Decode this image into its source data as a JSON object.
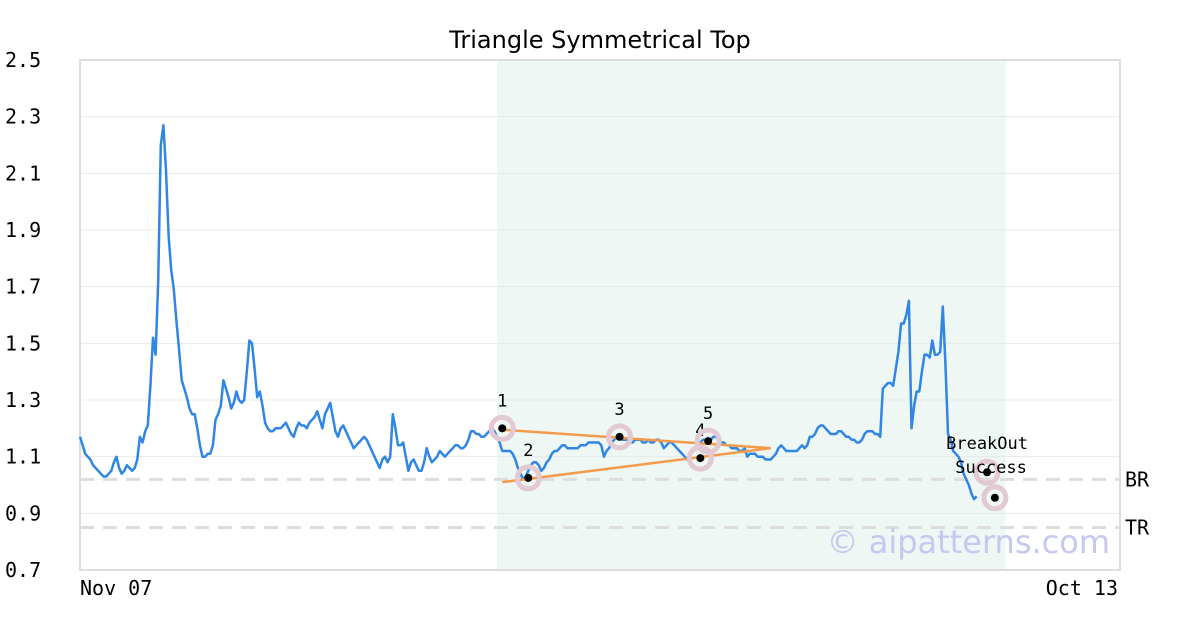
{
  "chart_data": {
    "type": "line",
    "title": "Triangle Symmetrical Top",
    "xlabel": "",
    "ylabel": "",
    "ylim": [
      0.7,
      2.5
    ],
    "y_ticks": [
      "0.7",
      "0.9",
      "1.1",
      "1.3",
      "1.5",
      "1.7",
      "1.9",
      "2.1",
      "2.3",
      "2.5"
    ],
    "x_labels": {
      "start": "Nov 07",
      "end": "Oct 13"
    },
    "n_points": 400,
    "grid": "horizontal",
    "highlight": {
      "from": 160,
      "to": 355,
      "color": "#eef7f3"
    },
    "colors": {
      "price": "#2f86e4",
      "trend": "#f39b4b",
      "marker": "#e2c9d3",
      "ref": "#dddddd",
      "frame": "#dddddd"
    },
    "series": [
      {
        "values": [
          1.17,
          1.14,
          1.11,
          1.1,
          1.09,
          1.07,
          1.06,
          1.05,
          1.04,
          1.03,
          1.03,
          1.04,
          1.05,
          1.08,
          1.1,
          1.06,
          1.04,
          1.05,
          1.07,
          1.06,
          1.05,
          1.06,
          1.09,
          1.17,
          1.15,
          1.19,
          1.21,
          1.35,
          1.52,
          1.46,
          1.72,
          2.2,
          2.27,
          2.11,
          1.88,
          1.76,
          1.69,
          1.58,
          1.48,
          1.37,
          1.34,
          1.31,
          1.27,
          1.25,
          1.25,
          1.2,
          1.14,
          1.1,
          1.1,
          1.11,
          1.11,
          1.14,
          1.23,
          1.25,
          1.28,
          1.37,
          1.34,
          1.31,
          1.27,
          1.29,
          1.33,
          1.3,
          1.29,
          1.3,
          1.4,
          1.51,
          1.5,
          1.41,
          1.31,
          1.33,
          1.28,
          1.22,
          1.2,
          1.19,
          1.19,
          1.2,
          1.2,
          1.2,
          1.21,
          1.22,
          1.2,
          1.18,
          1.17,
          1.2,
          1.22,
          1.21,
          1.21,
          1.2,
          1.22,
          1.23,
          1.24,
          1.26,
          1.23,
          1.2,
          1.25,
          1.27,
          1.29,
          1.24,
          1.19,
          1.17,
          1.2,
          1.21,
          1.19,
          1.17,
          1.15,
          1.13,
          1.14,
          1.15,
          1.16,
          1.17,
          1.16,
          1.14,
          1.12,
          1.1,
          1.08,
          1.06,
          1.09,
          1.1,
          1.08,
          1.1,
          1.25,
          1.2,
          1.14,
          1.14,
          1.15,
          1.1,
          1.05,
          1.08,
          1.09,
          1.07,
          1.05,
          1.05,
          1.08,
          1.13,
          1.1,
          1.08,
          1.09,
          1.1,
          1.12,
          1.11,
          1.1,
          1.11,
          1.12,
          1.13,
          1.14,
          1.14,
          1.13,
          1.13,
          1.14,
          1.16,
          1.19,
          1.19,
          1.18,
          1.18,
          1.17,
          1.17,
          1.18,
          1.19,
          1.2,
          1.19,
          1.17,
          1.15,
          1.12,
          1.12,
          1.12,
          1.12,
          1.11,
          1.09,
          1.06,
          1.04,
          1.02,
          1.03,
          1.05,
          1.07,
          1.08,
          1.08,
          1.07,
          1.05,
          1.06,
          1.08,
          1.09,
          1.11,
          1.12,
          1.12,
          1.13,
          1.14,
          1.14,
          1.13,
          1.13,
          1.13,
          1.13,
          1.13,
          1.14,
          1.14,
          1.14,
          1.15,
          1.15,
          1.15,
          1.15,
          1.15,
          1.14,
          1.1,
          1.12,
          1.13,
          1.15,
          1.16,
          1.17,
          1.17,
          1.16,
          1.16,
          1.16,
          1.15,
          1.15,
          1.16,
          1.16,
          1.16,
          1.15,
          1.15,
          1.16,
          1.15,
          1.15,
          1.16,
          1.16,
          1.15,
          1.13,
          1.14,
          1.15,
          1.15,
          1.14,
          1.13,
          1.12,
          1.11,
          1.1,
          1.09,
          1.1,
          1.12,
          1.13,
          1.14,
          1.15,
          1.16,
          1.16,
          1.16,
          1.16,
          1.17,
          1.17,
          1.16,
          1.15,
          1.15,
          1.14,
          1.14,
          1.13,
          1.13,
          1.13,
          1.12,
          1.12,
          1.13,
          1.1,
          1.11,
          1.11,
          1.11,
          1.1,
          1.1,
          1.1,
          1.09,
          1.09,
          1.09,
          1.1,
          1.11,
          1.13,
          1.14,
          1.13,
          1.12,
          1.12,
          1.12,
          1.12,
          1.12,
          1.13,
          1.14,
          1.13,
          1.14,
          1.17,
          1.17,
          1.18,
          1.2,
          1.21,
          1.21,
          1.2,
          1.19,
          1.18,
          1.18,
          1.18,
          1.19,
          1.19,
          1.18,
          1.17,
          1.17,
          1.16,
          1.16,
          1.15,
          1.15,
          1.16,
          1.18,
          1.19,
          1.19,
          1.19,
          1.18,
          1.18,
          1.17,
          1.34,
          1.35,
          1.36,
          1.36,
          1.35,
          1.41,
          1.47,
          1.57,
          1.57,
          1.6,
          1.65,
          1.2,
          1.28,
          1.33,
          1.33,
          1.4,
          1.46,
          1.46,
          1.45,
          1.51,
          1.46,
          1.46,
          1.47,
          1.63,
          1.43,
          1.18,
          1.16,
          1.12,
          1.11,
          1.1,
          1.08,
          1.04,
          1.02,
          1.0,
          0.97,
          0.95,
          0.96
        ]
      }
    ],
    "ref_lines": [
      {
        "label": "BR",
        "value": 1.02
      },
      {
        "label": "TR",
        "value": 0.85
      }
    ],
    "trend_lines": [
      {
        "x1": 162,
        "y1": 1.195,
        "x2": 265,
        "y2": 1.13
      },
      {
        "x1": 162,
        "y1": 1.01,
        "x2": 265,
        "y2": 1.13
      }
    ],
    "pattern_points": [
      {
        "label": "1",
        "x": 162,
        "y": 1.2
      },
      {
        "label": "2",
        "x": 172,
        "y": 1.025
      },
      {
        "label": "3",
        "x": 207,
        "y": 1.17
      },
      {
        "label": "4",
        "x": 238,
        "y": 1.095
      },
      {
        "label": "5",
        "x": 241,
        "y": 1.155
      }
    ],
    "breakout": {
      "line1": "BreakOut",
      "line2": "Success",
      "x": 348,
      "y": 1.045
    },
    "end_point": {
      "x": 351,
      "y": 0.955
    },
    "watermark": "© aipatterns.com"
  }
}
